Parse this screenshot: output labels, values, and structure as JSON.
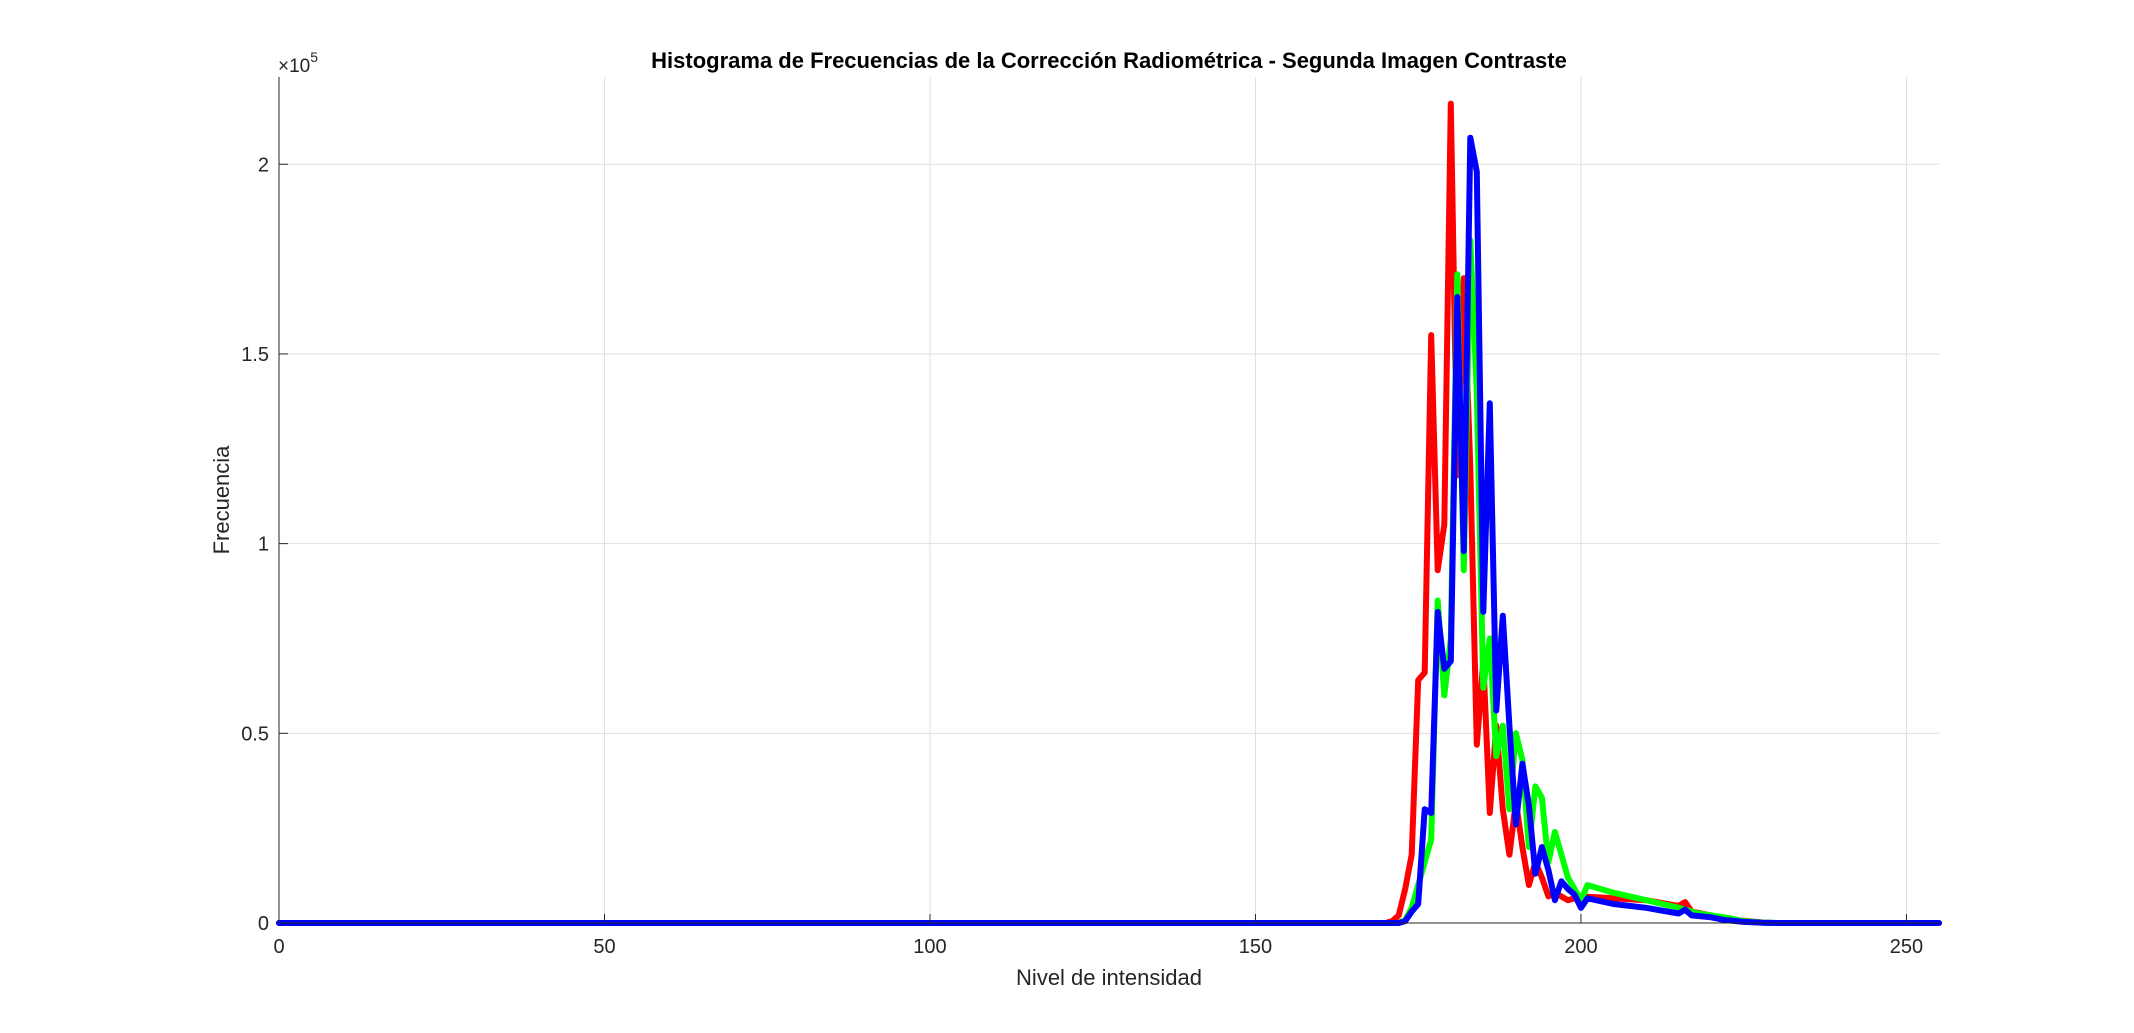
{
  "chart_data": {
    "type": "line",
    "title": "Histograma de Frecuencias de la Corrección Radiométrica - Segunda Imagen Contraste",
    "xlabel": "Nivel de intensidad",
    "ylabel": "Frecuencia",
    "xlim": [
      0,
      255
    ],
    "ylim": [
      0,
      223000
    ],
    "y_multiplier": "×10",
    "y_multiplier_exponent": "5",
    "grid": true,
    "x_ticks": [
      0,
      50,
      100,
      150,
      200,
      250
    ],
    "x_tick_labels": [
      "0",
      "50",
      "100",
      "150",
      "200",
      "250"
    ],
    "y_ticks": [
      0,
      50000,
      100000,
      150000,
      200000
    ],
    "y_tick_labels": [
      "0",
      "0.5",
      "1",
      "1.5",
      "2"
    ],
    "series": [
      {
        "color": "#ff0000",
        "points": [
          [
            0,
            0
          ],
          [
            170,
            0
          ],
          [
            171,
            500
          ],
          [
            172,
            2000
          ],
          [
            173,
            9000
          ],
          [
            174,
            18000
          ],
          [
            175,
            64000
          ],
          [
            176,
            66000
          ],
          [
            177,
            155000
          ],
          [
            178,
            93000
          ],
          [
            179,
            105000
          ],
          [
            180,
            216000
          ],
          [
            181,
            118000
          ],
          [
            182,
            170000
          ],
          [
            183,
            120000
          ],
          [
            184,
            47000
          ],
          [
            185,
            69000
          ],
          [
            186,
            29000
          ],
          [
            187,
            52000
          ],
          [
            188,
            30000
          ],
          [
            189,
            18000
          ],
          [
            190,
            32000
          ],
          [
            191,
            20000
          ],
          [
            192,
            10000
          ],
          [
            193,
            16000
          ],
          [
            194,
            12000
          ],
          [
            195,
            7000
          ],
          [
            196,
            8000
          ],
          [
            198,
            6000
          ],
          [
            200,
            7000
          ],
          [
            205,
            6500
          ],
          [
            210,
            6000
          ],
          [
            215,
            4500
          ],
          [
            216,
            5500
          ],
          [
            217,
            3000
          ],
          [
            220,
            2000
          ],
          [
            222,
            1000
          ],
          [
            225,
            600
          ],
          [
            228,
            100
          ],
          [
            230,
            0
          ],
          [
            255,
            0
          ]
        ]
      },
      {
        "color": "#00ff00",
        "points": [
          [
            0,
            0
          ],
          [
            172,
            0
          ],
          [
            173,
            800
          ],
          [
            174,
            4000
          ],
          [
            175,
            10000
          ],
          [
            176,
            16000
          ],
          [
            177,
            22000
          ],
          [
            178,
            85000
          ],
          [
            179,
            60000
          ],
          [
            180,
            75000
          ],
          [
            181,
            171000
          ],
          [
            182,
            93000
          ],
          [
            183,
            180000
          ],
          [
            184,
            140000
          ],
          [
            185,
            62000
          ],
          [
            186,
            75000
          ],
          [
            187,
            44000
          ],
          [
            188,
            52000
          ],
          [
            189,
            30000
          ],
          [
            190,
            50000
          ],
          [
            191,
            43000
          ],
          [
            192,
            20000
          ],
          [
            193,
            36000
          ],
          [
            194,
            33000
          ],
          [
            195,
            16000
          ],
          [
            196,
            24000
          ],
          [
            197,
            18000
          ],
          [
            198,
            12000
          ],
          [
            199,
            9000
          ],
          [
            200,
            6000
          ],
          [
            201,
            10000
          ],
          [
            205,
            8000
          ],
          [
            210,
            6000
          ],
          [
            215,
            4000
          ],
          [
            218,
            2500
          ],
          [
            222,
            1500
          ],
          [
            225,
            500
          ],
          [
            228,
            100
          ],
          [
            230,
            0
          ],
          [
            255,
            0
          ]
        ]
      },
      {
        "color": "#0000ff",
        "points": [
          [
            0,
            0
          ],
          [
            172,
            0
          ],
          [
            173,
            500
          ],
          [
            174,
            3000
          ],
          [
            175,
            5000
          ],
          [
            176,
            30000
          ],
          [
            177,
            29000
          ],
          [
            178,
            82000
          ],
          [
            179,
            67000
          ],
          [
            180,
            69000
          ],
          [
            181,
            165000
          ],
          [
            182,
            98000
          ],
          [
            183,
            207000
          ],
          [
            184,
            198000
          ],
          [
            185,
            82000
          ],
          [
            186,
            137000
          ],
          [
            187,
            56000
          ],
          [
            188,
            81000
          ],
          [
            189,
            52000
          ],
          [
            190,
            26000
          ],
          [
            191,
            42000
          ],
          [
            192,
            31000
          ],
          [
            193,
            13000
          ],
          [
            194,
            20000
          ],
          [
            195,
            14000
          ],
          [
            196,
            6000
          ],
          [
            197,
            11000
          ],
          [
            198,
            9000
          ],
          [
            199,
            7500
          ],
          [
            200,
            4000
          ],
          [
            201,
            6500
          ],
          [
            205,
            5000
          ],
          [
            210,
            4000
          ],
          [
            215,
            2500
          ],
          [
            216,
            3500
          ],
          [
            217,
            2000
          ],
          [
            220,
            1500
          ],
          [
            222,
            800
          ],
          [
            225,
            300
          ],
          [
            228,
            50
          ],
          [
            230,
            0
          ],
          [
            255,
            0
          ]
        ]
      }
    ]
  }
}
